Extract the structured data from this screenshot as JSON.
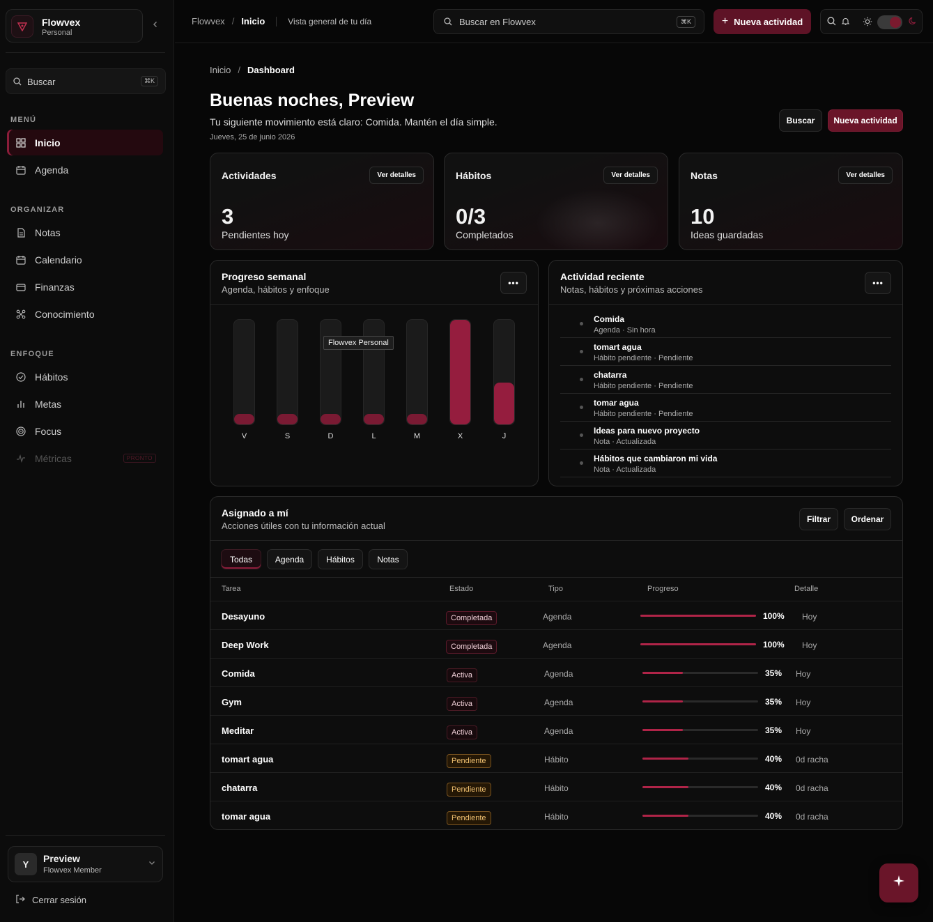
{
  "sidebar": {
    "brand": {
      "name": "Flowvex",
      "workspace": "Personal"
    },
    "search": {
      "label": "Buscar",
      "shortcut": "⌘K"
    },
    "sections": {
      "menu": "MENÚ",
      "organizar": "ORGANIZAR",
      "enfoque": "ENFOQUE"
    },
    "items": {
      "inicio": "Inicio",
      "agenda": "Agenda",
      "notas": "Notas",
      "calendario": "Calendario",
      "finanzas": "Finanzas",
      "conocimiento": "Conocimiento",
      "habitos": "Hábitos",
      "metas": "Metas",
      "focus": "Focus",
      "metricas": "Métricas",
      "metricas_badge": "PRONTO"
    },
    "user": {
      "initial": "Y",
      "name": "Preview",
      "role": "Flowvex Member"
    },
    "logout": "Cerrar sesión"
  },
  "topbar": {
    "crumb_root": "Flowvex",
    "crumb_current": "Inicio",
    "description": "Vista general de tu día",
    "search_label": "Buscar en Flowvex",
    "search_shortcut": "⌘K",
    "new_activity": "Nueva actividad"
  },
  "main": {
    "crumb_root": "Inicio",
    "crumb_current": "Dashboard",
    "greeting": "Buenas noches, Preview",
    "subtitle": "Tu siguiente movimiento está claro: Comida. Mantén el día simple.",
    "date": "Jueves, 25 de junio 2026",
    "btn_search": "Buscar",
    "btn_new": "Nueva actividad"
  },
  "stats": [
    {
      "title": "Actividades",
      "detail": "Ver detalles",
      "value": "3",
      "label": "Pendientes hoy"
    },
    {
      "title": "Hábitos",
      "detail": "Ver detalles",
      "value": "0/3",
      "label": "Completados"
    },
    {
      "title": "Notas",
      "detail": "Ver detalles",
      "value": "10",
      "label": "Ideas guardadas"
    }
  ],
  "weekly": {
    "title": "Progreso semanal",
    "subtitle": "Agenda, hábitos y enfoque",
    "menu": "•••",
    "tooltip": "Flowvex Personal"
  },
  "chart_data": {
    "type": "bar",
    "categories": [
      "V",
      "S",
      "D",
      "L",
      "M",
      "X",
      "J"
    ],
    "values": [
      0.1,
      0.1,
      0.1,
      0.1,
      0.1,
      1.0,
      0.4
    ],
    "ylim": [
      0,
      1
    ],
    "grid": false
  },
  "recent": {
    "title": "Actividad reciente",
    "subtitle": "Notas, hábitos y próximas acciones",
    "menu": "•••",
    "items": [
      {
        "title": "Comida",
        "meta": "Agenda · Sin hora"
      },
      {
        "title": "tomart agua",
        "meta": "Hábito pendiente · Pendiente"
      },
      {
        "title": "chatarra",
        "meta": "Hábito pendiente · Pendiente"
      },
      {
        "title": "tomar agua",
        "meta": "Hábito pendiente · Pendiente"
      },
      {
        "title": "Ideas para nuevo proyecto",
        "meta": "Nota · Actualizada"
      },
      {
        "title": "Hábitos que cambiaron mi vida",
        "meta": "Nota · Actualizada"
      }
    ]
  },
  "assigned": {
    "title": "Asignado a mí",
    "subtitle": "Acciones útiles con tu información actual",
    "filter": "Filtrar",
    "sort": "Ordenar",
    "tabs": [
      "Todas",
      "Agenda",
      "Hábitos",
      "Notas"
    ],
    "columns": {
      "task": "Tarea",
      "status": "Estado",
      "type": "Tipo",
      "progress": "Progreso",
      "detail": "Detalle"
    },
    "rows": [
      {
        "task": "Desayuno",
        "status": "Completada",
        "kind": "done",
        "type": "Agenda",
        "progress": 100,
        "progress_label": "100%",
        "detail": "Hoy"
      },
      {
        "task": "Deep Work",
        "status": "Completada",
        "kind": "done",
        "type": "Agenda",
        "progress": 100,
        "progress_label": "100%",
        "detail": "Hoy"
      },
      {
        "task": "Comida",
        "status": "Activa",
        "kind": "act",
        "type": "Agenda",
        "progress": 35,
        "progress_label": "35%",
        "detail": "Hoy"
      },
      {
        "task": "Gym",
        "status": "Activa",
        "kind": "act",
        "type": "Agenda",
        "progress": 35,
        "progress_label": "35%",
        "detail": "Hoy"
      },
      {
        "task": "Meditar",
        "status": "Activa",
        "kind": "act",
        "type": "Agenda",
        "progress": 35,
        "progress_label": "35%",
        "detail": "Hoy"
      },
      {
        "task": "tomart agua",
        "status": "Pendiente",
        "kind": "pend",
        "type": "Hábito",
        "progress": 40,
        "progress_label": "40%",
        "detail": "0d racha"
      },
      {
        "task": "chatarra",
        "status": "Pendiente",
        "kind": "pend",
        "type": "Hábito",
        "progress": 40,
        "progress_label": "40%",
        "detail": "0d racha"
      },
      {
        "task": "tomar agua",
        "status": "Pendiente",
        "kind": "pend",
        "type": "Hábito",
        "progress": 40,
        "progress_label": "40%",
        "detail": "0d racha"
      }
    ]
  },
  "colors": {
    "accent": "#6a1529",
    "accent_bright": "#b02448",
    "pending": "#f0c070"
  }
}
